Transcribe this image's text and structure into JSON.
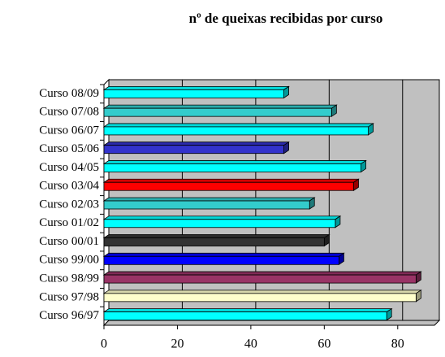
{
  "chart_data": {
    "type": "bar3d",
    "orientation": "horizontal",
    "title": "nº de queixas recibidas por curso",
    "categories": [
      "Curso 08/09",
      "Curso 07/08",
      "Curso 06/07",
      "Curso 05/06",
      "Curso 04/05",
      "Curso 03/04",
      "Curso 02/03",
      "Curso 01/02",
      "Curso 00/01",
      "Curso 99/00",
      "Curso 98/99",
      "Curso 97/98",
      "Curso 96/97"
    ],
    "values": [
      49,
      62,
      72,
      49,
      70,
      68,
      56,
      63,
      60,
      64,
      85,
      85,
      77
    ],
    "colors": [
      "#00ffff",
      "#33cccc",
      "#00ffff",
      "#3333cc",
      "#00ffff",
      "#ff0000",
      "#33cccc",
      "#00ffff",
      "#333333",
      "#0000ff",
      "#993366",
      "#ffffcc",
      "#00ffff"
    ],
    "xlim": [
      0,
      90
    ],
    "xticks": [
      0,
      20,
      40,
      60,
      80
    ],
    "grid": true
  }
}
